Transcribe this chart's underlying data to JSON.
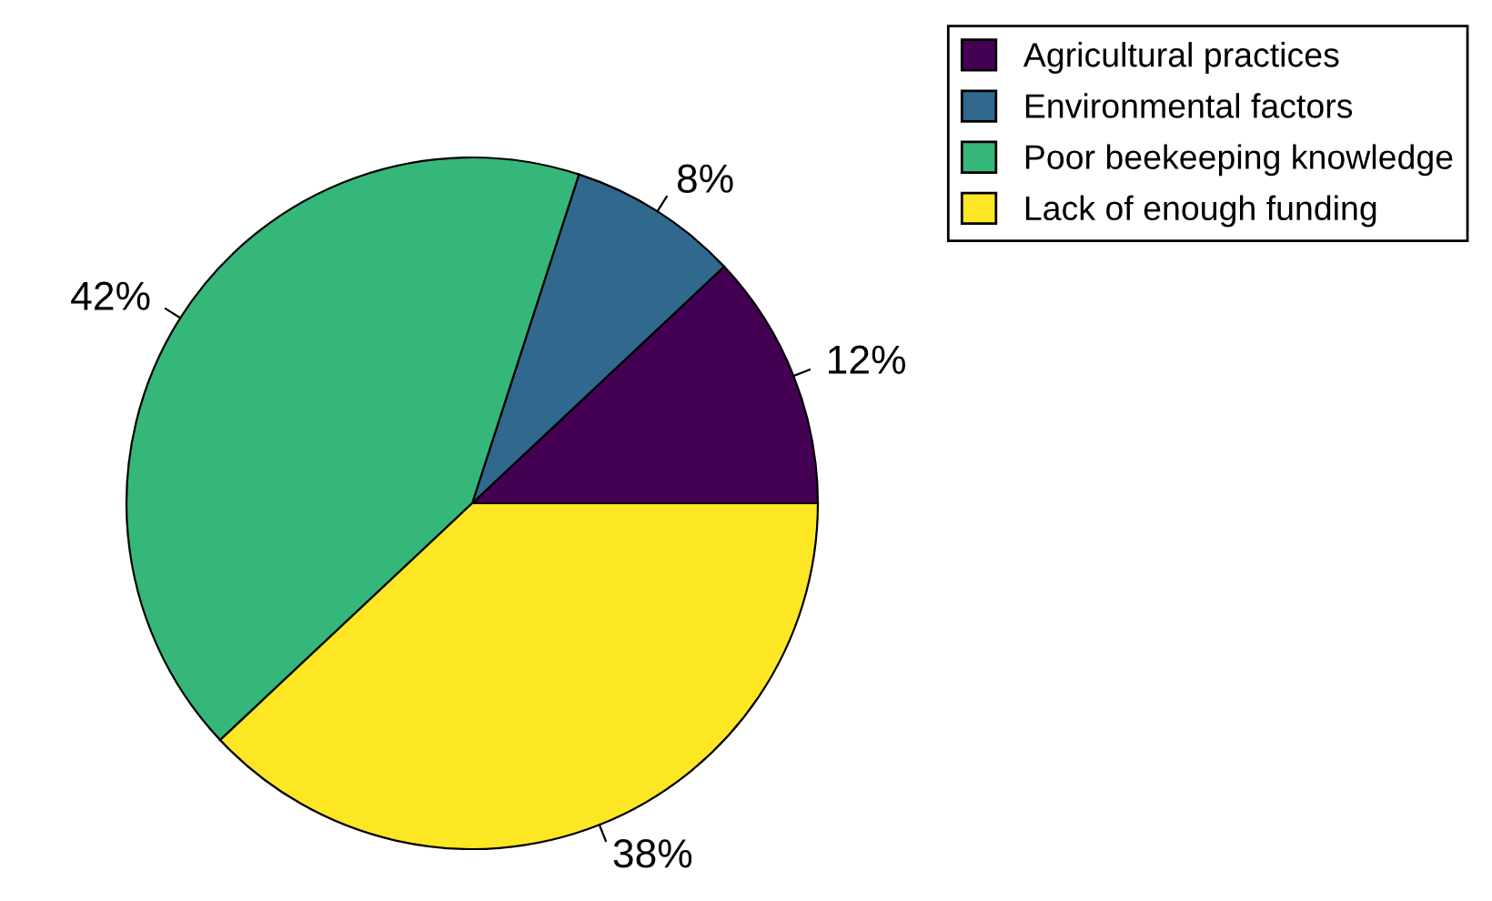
{
  "chart_data": {
    "type": "pie",
    "categories": [
      "Agricultural practices",
      "Environmental factors",
      "Poor beekeeping knowledge",
      "Lack of enough funding"
    ],
    "values": [
      12,
      8,
      42,
      38
    ],
    "colors": [
      "#440154",
      "#31688e",
      "#35b779",
      "#fde725"
    ],
    "value_labels": [
      "12%",
      "8%",
      "42%",
      "38%"
    ],
    "legend": "top right"
  }
}
